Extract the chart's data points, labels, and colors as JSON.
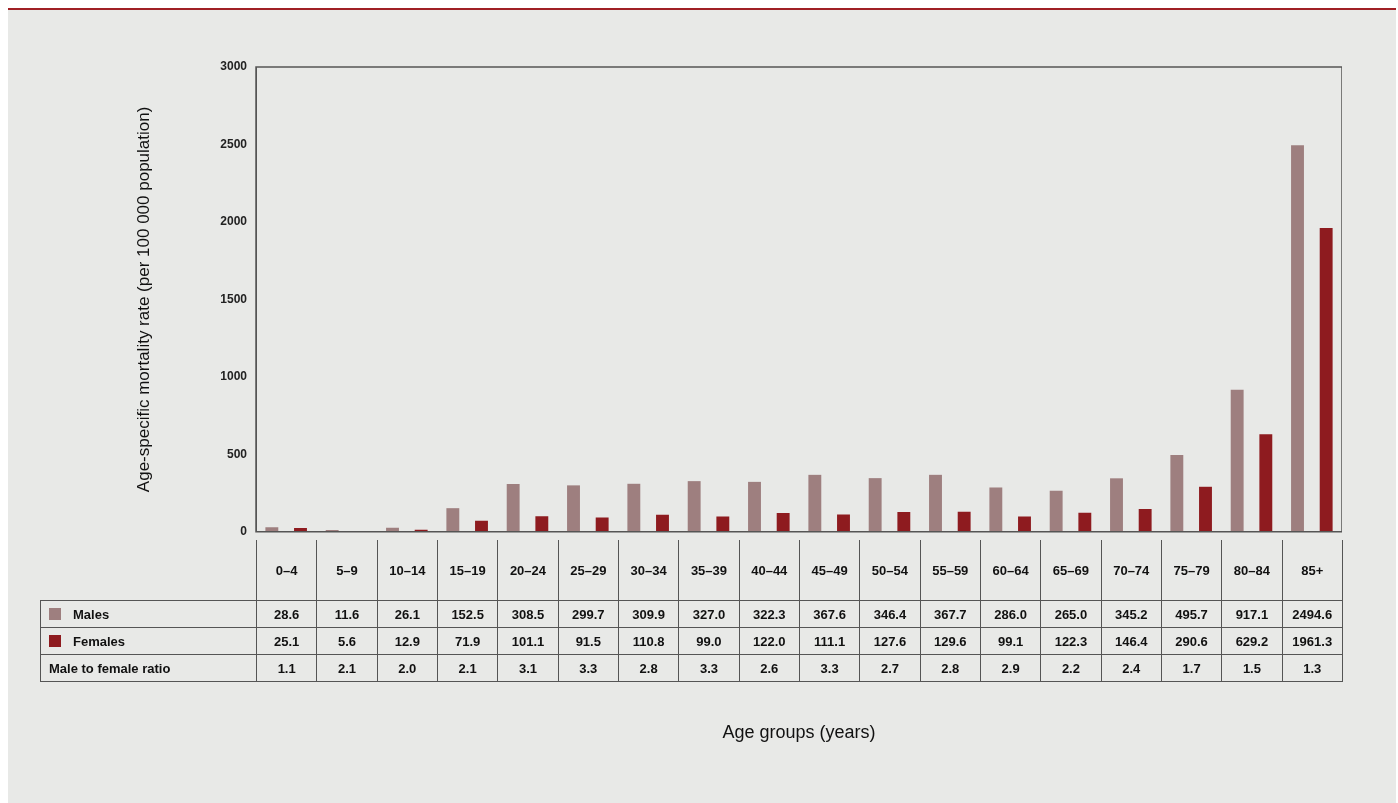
{
  "chart_data": {
    "type": "bar",
    "ylabel": "Age-specific mortality rate (per 100 000 population)",
    "categories": [
      "0–4",
      "5–9",
      "10–14",
      "15–19",
      "20–24",
      "25–29",
      "30–34",
      "35–39",
      "40–44",
      "45–49",
      "50–54",
      "55–59",
      "60–64",
      "65–69",
      "70–74",
      "75–79",
      "80–84",
      "85+"
    ],
    "series": [
      {
        "name": "Males",
        "color": "#9e7f7f",
        "values": [
          28.6,
          11.6,
          26.1,
          152.5,
          308.5,
          299.7,
          309.9,
          327.0,
          322.3,
          367.6,
          346.4,
          367.7,
          286.0,
          265.0,
          345.2,
          495.7,
          917.1,
          2494.6
        ],
        "value_labels": [
          "28.6",
          "11.6",
          "26.1",
          "152.5",
          "308.5",
          "299.7",
          "309.9",
          "327.0",
          "322.3",
          "367.6",
          "346.4",
          "367.7",
          "286.0",
          "265.0",
          "345.2",
          "495.7",
          "917.1",
          "2494.6"
        ]
      },
      {
        "name": "Females",
        "color": "#8e1b1f",
        "values": [
          25.1,
          5.6,
          12.9,
          71.9,
          101.1,
          91.5,
          110.8,
          99.0,
          122.0,
          111.1,
          127.6,
          129.6,
          99.1,
          122.3,
          146.4,
          290.6,
          629.2,
          1961.3
        ],
        "value_labels": [
          "25.1",
          "5.6",
          "12.9",
          "71.9",
          "101.1",
          "91.5",
          "110.8",
          "99.0",
          "122.0",
          "111.1",
          "127.6",
          "129.6",
          "99.1",
          "122.3",
          "146.4",
          "290.6",
          "629.2",
          "1961.3"
        ]
      }
    ],
    "annotations": [
      "Male to female ratio",
      "1.1",
      "2.1",
      "2.0",
      "2.1",
      "3.1",
      "3.3",
      "2.8",
      "3.3",
      "2.6",
      "3.3",
      "2.7",
      "2.8",
      "2.9",
      "2.2",
      "2.4",
      "1.7",
      "1.5",
      "1.3",
      "Age groups (years)"
    ],
    "ylim": [
      0,
      3000
    ],
    "yticks": [
      0,
      500,
      1000,
      1500,
      2000,
      2500,
      3000
    ],
    "grid": false,
    "legend": "bottom"
  }
}
